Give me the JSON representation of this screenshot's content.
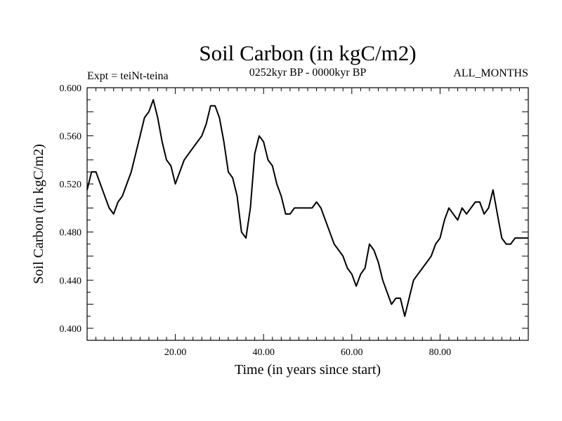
{
  "chart_data": {
    "type": "line",
    "title": "Soil Carbon (in kgC/m2)",
    "subtitle_left": "Expt = teiNt-teina",
    "subtitle_center": "0252kyr BP - 0000kyr BP",
    "subtitle_right": "ALL_MONTHS",
    "xlabel": "Time (in years since start)",
    "ylabel": "Soil Carbon (in kgC/m2)",
    "xlim": [
      0,
      100
    ],
    "ylim": [
      0.39,
      0.6
    ],
    "xticks": [
      20,
      40,
      60,
      80
    ],
    "xtick_labels": [
      "20.00",
      "40.00",
      "60.00",
      "80.00"
    ],
    "yticks": [
      0.4,
      0.44,
      0.48,
      0.52,
      0.56,
      0.6
    ],
    "ytick_labels": [
      "0.400",
      "0.440",
      "0.480",
      "0.520",
      "0.560",
      "0.600"
    ],
    "grid": false,
    "series": [
      {
        "name": "Soil Carbon",
        "x": [
          0,
          1,
          2,
          3,
          4,
          5,
          6,
          7,
          8,
          9,
          10,
          11,
          12,
          13,
          14,
          15,
          16,
          17,
          18,
          19,
          20,
          21,
          22,
          23,
          24,
          25,
          26,
          27,
          28,
          29,
          30,
          31,
          32,
          33,
          34,
          35,
          36,
          37,
          38,
          39,
          40,
          41,
          42,
          43,
          44,
          45,
          46,
          47,
          48,
          49,
          50,
          51,
          52,
          53,
          54,
          55,
          56,
          57,
          58,
          59,
          60,
          61,
          62,
          63,
          64,
          65,
          66,
          67,
          68,
          69,
          70,
          71,
          72,
          73,
          74,
          75,
          76,
          77,
          78,
          79,
          80,
          81,
          82,
          83,
          84,
          85,
          86,
          87,
          88,
          89,
          90,
          91,
          92,
          93,
          94,
          95,
          96,
          97,
          98,
          99,
          100
        ],
        "values": [
          0.515,
          0.53,
          0.53,
          0.52,
          0.51,
          0.5,
          0.495,
          0.505,
          0.51,
          0.52,
          0.53,
          0.545,
          0.56,
          0.575,
          0.58,
          0.59,
          0.575,
          0.555,
          0.54,
          0.535,
          0.52,
          0.53,
          0.54,
          0.545,
          0.55,
          0.555,
          0.56,
          0.57,
          0.585,
          0.585,
          0.575,
          0.555,
          0.53,
          0.525,
          0.51,
          0.48,
          0.475,
          0.5,
          0.545,
          0.56,
          0.555,
          0.54,
          0.535,
          0.52,
          0.51,
          0.495,
          0.495,
          0.5,
          0.5,
          0.5,
          0.5,
          0.5,
          0.505,
          0.5,
          0.49,
          0.48,
          0.47,
          0.465,
          0.46,
          0.45,
          0.445,
          0.435,
          0.445,
          0.45,
          0.47,
          0.465,
          0.455,
          0.44,
          0.43,
          0.42,
          0.425,
          0.425,
          0.41,
          0.425,
          0.44,
          0.445,
          0.45,
          0.455,
          0.46,
          0.47,
          0.475,
          0.49,
          0.5,
          0.495,
          0.49,
          0.5,
          0.495,
          0.5,
          0.505,
          0.505,
          0.495,
          0.5,
          0.515,
          0.495,
          0.475,
          0.47,
          0.47,
          0.475,
          0.475,
          0.475,
          0.475
        ]
      }
    ]
  }
}
